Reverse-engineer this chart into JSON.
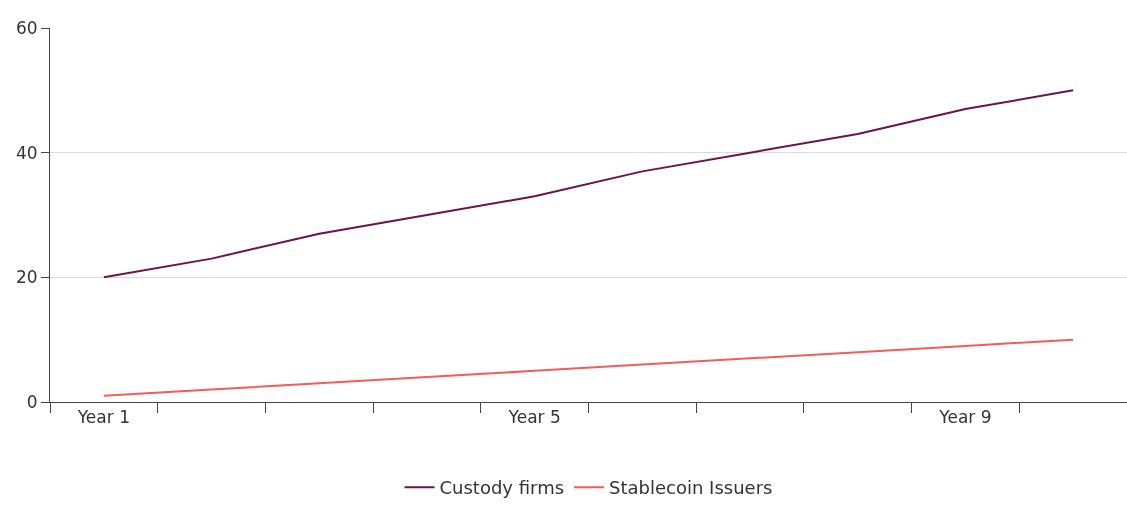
{
  "chart_data": {
    "type": "line",
    "categories": [
      "Year 1",
      null,
      null,
      null,
      "Year 5",
      null,
      null,
      null,
      "Year 9",
      null
    ],
    "series": [
      {
        "name": "Custody firms",
        "color": "#6b1449",
        "values": [
          20,
          23,
          27,
          30,
          33,
          37,
          40,
          43,
          47,
          50
        ]
      },
      {
        "name": "Stablecoin Issuers",
        "color": "#f25c5c",
        "values": [
          1,
          2,
          3,
          4,
          5,
          6,
          7,
          8,
          9,
          10
        ]
      }
    ],
    "ylim": [
      0,
      60
    ],
    "yticks": [
      0,
      20,
      40,
      60
    ],
    "grid": "y",
    "legend": "bottom",
    "marker": "none",
    "line_style": "solid"
  }
}
